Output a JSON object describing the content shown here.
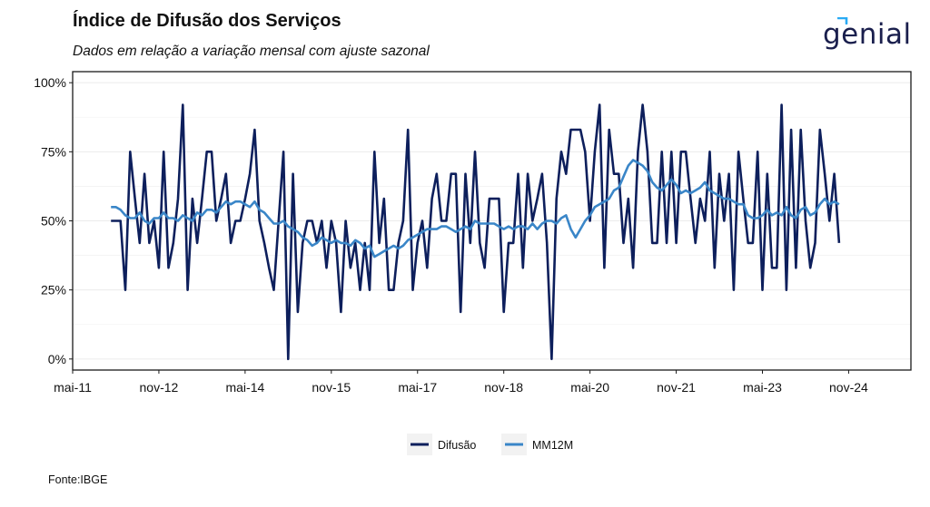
{
  "header": {
    "title": "Índice de Difusão dos Serviços",
    "subtitle": "Dados em relação a variação mensal com ajuste sazonal",
    "logo_text": "genial"
  },
  "footer": {
    "source": "Fonte:IBGE"
  },
  "colors": {
    "difusao": "#0d1f5c",
    "mm12m": "#3a86c8",
    "grid": "#ebebeb",
    "frame": "#1a1a1a"
  },
  "chart_data": {
    "type": "line",
    "title": "Índice de Difusão dos Serviços",
    "subtitle": "Dados em relação a variação mensal com ajuste sazonal",
    "xlabel": "",
    "ylabel": "",
    "x_range": [
      "2011-05",
      "2025-12"
    ],
    "ylim": [
      -0.04,
      1.04
    ],
    "y_ticks": [
      0,
      0.25,
      0.5,
      0.75,
      1.0
    ],
    "y_tick_labels": [
      "0%",
      "25%",
      "50%",
      "75%",
      "100%"
    ],
    "x_ticks": [
      "2011-05",
      "2012-11",
      "2014-05",
      "2015-11",
      "2017-05",
      "2018-11",
      "2020-05",
      "2021-11",
      "2023-05",
      "2024-11"
    ],
    "x_tick_labels": [
      "mai-11",
      "nov-12",
      "mai-14",
      "nov-15",
      "mai-17",
      "nov-18",
      "mai-20",
      "nov-21",
      "mai-23",
      "nov-24"
    ],
    "grid": true,
    "legend_position": "bottom",
    "series": [
      {
        "name": "Difusão",
        "start": "2012-01",
        "values": [
          0.5,
          0.5,
          0.5,
          0.25,
          0.75,
          0.58,
          0.42,
          0.67,
          0.42,
          0.5,
          0.33,
          0.75,
          0.33,
          0.42,
          0.58,
          0.92,
          0.25,
          0.58,
          0.42,
          0.58,
          0.75,
          0.75,
          0.5,
          0.58,
          0.67,
          0.42,
          0.5,
          0.5,
          0.58,
          0.67,
          0.83,
          0.5,
          0.42,
          0.33,
          0.25,
          0.5,
          0.75,
          0.0,
          0.67,
          0.17,
          0.42,
          0.5,
          0.5,
          0.42,
          0.5,
          0.33,
          0.5,
          0.42,
          0.17,
          0.5,
          0.33,
          0.42,
          0.25,
          0.42,
          0.25,
          0.75,
          0.42,
          0.58,
          0.25,
          0.25,
          0.42,
          0.5,
          0.83,
          0.25,
          0.42,
          0.5,
          0.33,
          0.58,
          0.67,
          0.5,
          0.5,
          0.67,
          0.67,
          0.17,
          0.67,
          0.42,
          0.75,
          0.42,
          0.33,
          0.58,
          0.58,
          0.58,
          0.17,
          0.42,
          0.42,
          0.67,
          0.33,
          0.67,
          0.5,
          0.58,
          0.67,
          0.42,
          0.0,
          0.58,
          0.75,
          0.67,
          0.83,
          0.83,
          0.83,
          0.75,
          0.5,
          0.75,
          0.92,
          0.33,
          0.83,
          0.67,
          0.67,
          0.42,
          0.58,
          0.33,
          0.75,
          0.92,
          0.75,
          0.42,
          0.42,
          0.75,
          0.42,
          0.75,
          0.42,
          0.75,
          0.75,
          0.58,
          0.42,
          0.58,
          0.5,
          0.75,
          0.33,
          0.67,
          0.5,
          0.67,
          0.25,
          0.75,
          0.58,
          0.42,
          0.42,
          0.75,
          0.25,
          0.67,
          0.33,
          0.33,
          0.92,
          0.25,
          0.83,
          0.33,
          0.83,
          0.5,
          0.33,
          0.42,
          0.83,
          0.67,
          0.5,
          0.67,
          0.42
        ],
        "color": "#0d1f5c"
      },
      {
        "name": "MM12M",
        "start": "2012-01",
        "values": [
          0.55,
          0.55,
          0.54,
          0.52,
          0.51,
          0.51,
          0.53,
          0.5,
          0.49,
          0.51,
          0.51,
          0.53,
          0.51,
          0.51,
          0.5,
          0.52,
          0.51,
          0.5,
          0.53,
          0.52,
          0.54,
          0.54,
          0.53,
          0.55,
          0.57,
          0.56,
          0.57,
          0.57,
          0.56,
          0.55,
          0.57,
          0.54,
          0.53,
          0.51,
          0.49,
          0.49,
          0.5,
          0.48,
          0.47,
          0.46,
          0.44,
          0.43,
          0.41,
          0.42,
          0.44,
          0.43,
          0.42,
          0.43,
          0.42,
          0.42,
          0.41,
          0.43,
          0.42,
          0.4,
          0.41,
          0.37,
          0.38,
          0.39,
          0.4,
          0.41,
          0.4,
          0.41,
          0.43,
          0.44,
          0.45,
          0.46,
          0.47,
          0.47,
          0.47,
          0.48,
          0.48,
          0.47,
          0.46,
          0.47,
          0.48,
          0.47,
          0.5,
          0.49,
          0.49,
          0.49,
          0.49,
          0.48,
          0.47,
          0.48,
          0.47,
          0.48,
          0.48,
          0.47,
          0.49,
          0.47,
          0.49,
          0.5,
          0.5,
          0.49,
          0.51,
          0.52,
          0.47,
          0.44,
          0.47,
          0.5,
          0.52,
          0.55,
          0.56,
          0.57,
          0.58,
          0.61,
          0.62,
          0.66,
          0.7,
          0.72,
          0.71,
          0.7,
          0.68,
          0.64,
          0.62,
          0.61,
          0.63,
          0.65,
          0.63,
          0.6,
          0.61,
          0.6,
          0.61,
          0.62,
          0.64,
          0.61,
          0.6,
          0.59,
          0.58,
          0.58,
          0.57,
          0.56,
          0.56,
          0.52,
          0.51,
          0.51,
          0.52,
          0.54,
          0.52,
          0.53,
          0.52,
          0.55,
          0.52,
          0.51,
          0.54,
          0.55,
          0.52,
          0.53,
          0.56,
          0.58,
          0.56,
          0.57,
          0.56
        ],
        "color": "#3a86c8"
      }
    ]
  }
}
